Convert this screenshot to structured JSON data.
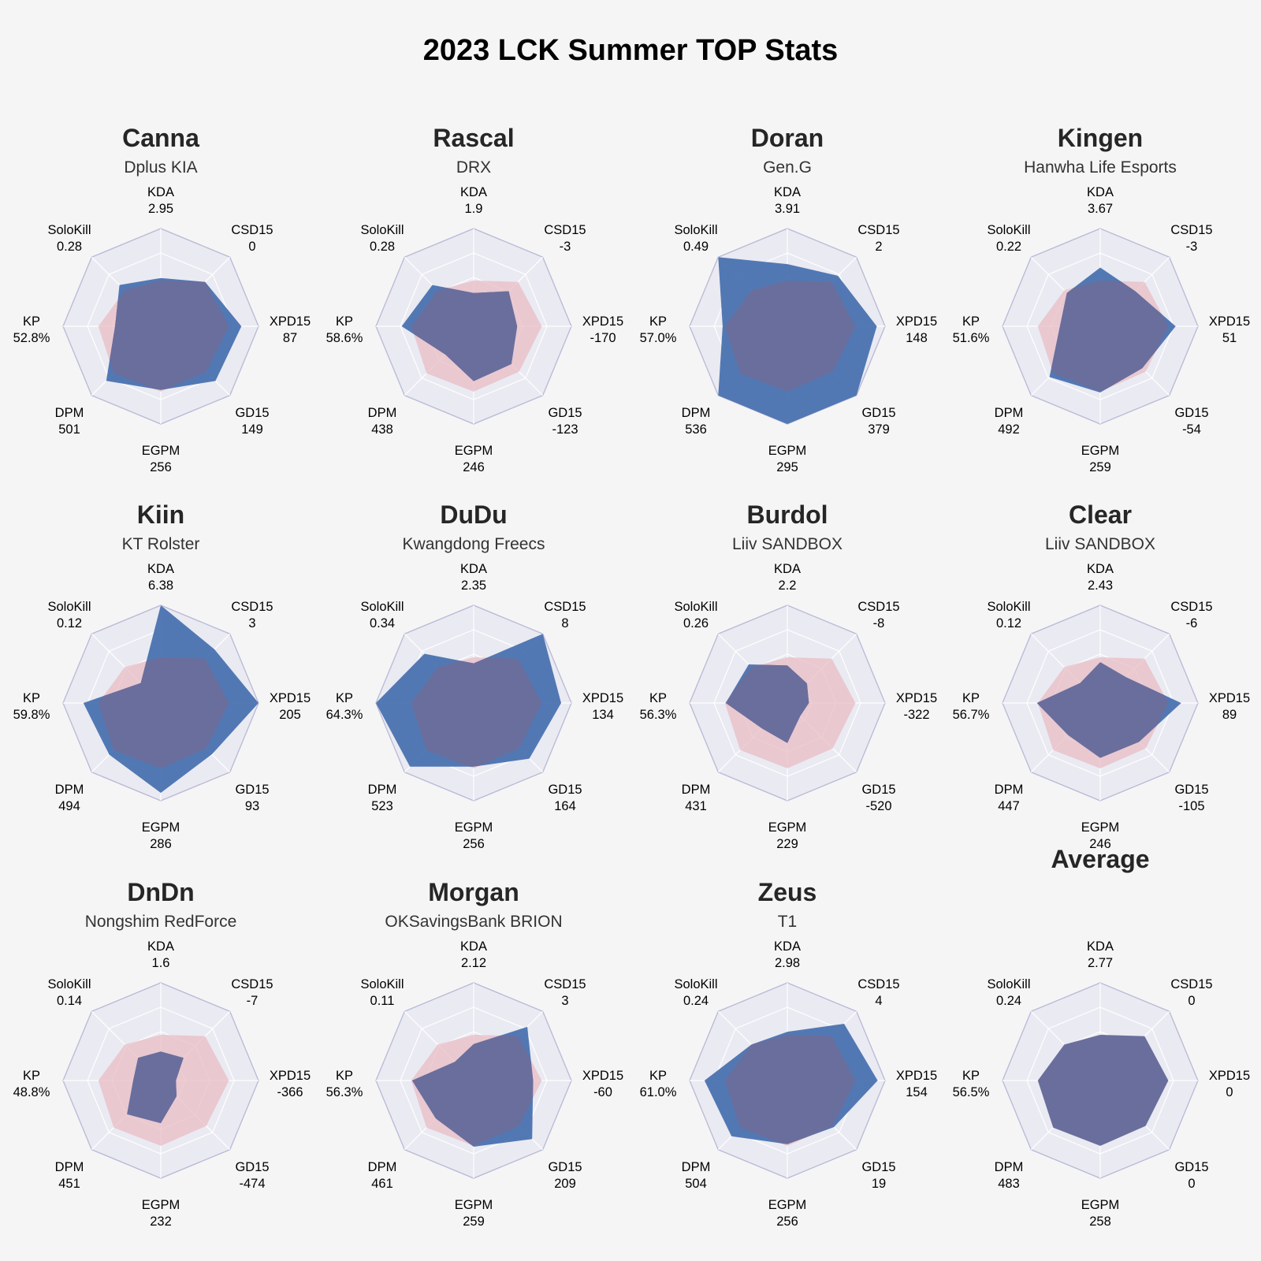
{
  "title": "2023 LCK Summer TOP Stats",
  "colors": {
    "background": "#f5f5f5",
    "panel": "#eaeaf2",
    "outline": "#b8b8d8",
    "spoke": "#ffffff",
    "player_fill": "#4a72b0",
    "average_fill": "#e8bcc4",
    "overlap_fill": "#6a6e9c"
  },
  "chart_data": {
    "type": "radar",
    "axes": [
      "KDA",
      "CSD15",
      "XPD15",
      "GD15",
      "EGPM",
      "DPM",
      "KP",
      "SoloKill"
    ],
    "axis_ranges": {
      "KDA": [
        0,
        6.38
      ],
      "CSD15": [
        -13,
        8
      ],
      "XPD15": [
        -430,
        205
      ],
      "GD15": [
        -660,
        379
      ],
      "EGPM": [
        190,
        295
      ],
      "DPM": [
        380,
        536
      ],
      "KP": [
        44,
        64.3
      ],
      "SoloKill": [
        0,
        0.49
      ]
    },
    "average": {
      "name": "Average",
      "values": {
        "KDA": 2.77,
        "CSD15": 0,
        "XPD15": 0,
        "GD15": 0,
        "EGPM": 258,
        "DPM": 483,
        "KP": 56.5,
        "SoloKill": 0.24
      },
      "labels": {
        "KDA": "2.77",
        "CSD15": "0",
        "XPD15": "0",
        "GD15": "0",
        "EGPM": "258",
        "DPM": "483",
        "KP": "56.5%",
        "SoloKill": "0.24"
      }
    },
    "players": [
      {
        "name": "Canna",
        "team": "Dplus KIA",
        "values": {
          "KDA": 2.95,
          "CSD15": 0,
          "XPD15": 87,
          "GD15": 149,
          "EGPM": 256,
          "DPM": 501,
          "KP": 52.8,
          "SoloKill": 0.28
        },
        "labels": {
          "KDA": "2.95",
          "CSD15": "0",
          "XPD15": "87",
          "GD15": "149",
          "EGPM": "256",
          "DPM": "501",
          "KP": "52.8%",
          "SoloKill": "0.28"
        }
      },
      {
        "name": "Rascal",
        "team": "DRX",
        "values": {
          "KDA": 1.9,
          "CSD15": -3,
          "XPD15": -170,
          "GD15": -123,
          "EGPM": 246,
          "DPM": 438,
          "KP": 58.6,
          "SoloKill": 0.28
        },
        "labels": {
          "KDA": "1.9",
          "CSD15": "-3",
          "XPD15": "-170",
          "GD15": "-123",
          "EGPM": "246",
          "DPM": "438",
          "KP": "58.6%",
          "SoloKill": "0.28"
        }
      },
      {
        "name": "Doran",
        "team": "Gen.G",
        "values": {
          "KDA": 3.91,
          "CSD15": 2,
          "XPD15": 148,
          "GD15": 379,
          "EGPM": 295,
          "DPM": 536,
          "KP": 57.0,
          "SoloKill": 0.49
        },
        "labels": {
          "KDA": "3.91",
          "CSD15": "2",
          "XPD15": "148",
          "GD15": "379",
          "EGPM": "295",
          "DPM": "536",
          "KP": "57.0%",
          "SoloKill": "0.49"
        }
      },
      {
        "name": "Kingen",
        "team": "Hanwha Life Esports",
        "values": {
          "KDA": 3.67,
          "CSD15": -3,
          "XPD15": 51,
          "GD15": -54,
          "EGPM": 259,
          "DPM": 492,
          "KP": 51.6,
          "SoloKill": 0.22
        },
        "labels": {
          "KDA": "3.67",
          "CSD15": "-3",
          "XPD15": "51",
          "GD15": "-54",
          "EGPM": "259",
          "DPM": "492",
          "KP": "51.6%",
          "SoloKill": "0.22"
        }
      },
      {
        "name": "Kiin",
        "team": "KT Rolster",
        "values": {
          "KDA": 6.38,
          "CSD15": 3,
          "XPD15": 205,
          "GD15": 93,
          "EGPM": 286,
          "DPM": 494,
          "KP": 59.8,
          "SoloKill": 0.12
        },
        "labels": {
          "KDA": "6.38",
          "CSD15": "3",
          "XPD15": "205",
          "GD15": "93",
          "EGPM": "286",
          "DPM": "494",
          "KP": "59.8%",
          "SoloKill": "0.12"
        }
      },
      {
        "name": "DuDu",
        "team": "Kwangdong Freecs",
        "values": {
          "KDA": 2.35,
          "CSD15": 8,
          "XPD15": 134,
          "GD15": 164,
          "EGPM": 256,
          "DPM": 523,
          "KP": 64.3,
          "SoloKill": 0.34
        },
        "labels": {
          "KDA": "2.35",
          "CSD15": "8",
          "XPD15": "134",
          "GD15": "164",
          "EGPM": "256",
          "DPM": "523",
          "KP": "64.3%",
          "SoloKill": "0.34"
        }
      },
      {
        "name": "Burdol",
        "team": "Liiv SANDBOX",
        "values": {
          "KDA": 2.2,
          "CSD15": -8,
          "XPD15": -322,
          "GD15": -520,
          "EGPM": 229,
          "DPM": 431,
          "KP": 56.3,
          "SoloKill": 0.26
        },
        "labels": {
          "KDA": "2.2",
          "CSD15": "-8",
          "XPD15": "-322",
          "GD15": "-520",
          "EGPM": "229",
          "DPM": "431",
          "KP": "56.3%",
          "SoloKill": "0.26"
        }
      },
      {
        "name": "Clear",
        "team": "Liiv SANDBOX",
        "values": {
          "KDA": 2.43,
          "CSD15": -6,
          "XPD15": 89,
          "GD15": -105,
          "EGPM": 246,
          "DPM": 447,
          "KP": 56.7,
          "SoloKill": 0.12
        },
        "labels": {
          "KDA": "2.43",
          "CSD15": "-6",
          "XPD15": "89",
          "GD15": "-105",
          "EGPM": "246",
          "DPM": "447",
          "KP": "56.7%",
          "SoloKill": "0.12"
        }
      },
      {
        "name": "DnDn",
        "team": "Nongshim RedForce",
        "values": {
          "KDA": 1.6,
          "CSD15": -7,
          "XPD15": -366,
          "GD15": -474,
          "EGPM": 232,
          "DPM": 451,
          "KP": 48.8,
          "SoloKill": 0.14
        },
        "labels": {
          "KDA": "1.6",
          "CSD15": "-7",
          "XPD15": "-366",
          "GD15": "-474",
          "EGPM": "232",
          "DPM": "451",
          "KP": "48.8%",
          "SoloKill": "0.14"
        }
      },
      {
        "name": "Morgan",
        "team": "OKSavingsBank BRION",
        "values": {
          "KDA": 2.12,
          "CSD15": 3,
          "XPD15": -60,
          "GD15": 209,
          "EGPM": 259,
          "DPM": 461,
          "KP": 56.3,
          "SoloKill": 0.11
        },
        "labels": {
          "KDA": "2.12",
          "CSD15": "3",
          "XPD15": "-60",
          "GD15": "209",
          "EGPM": "259",
          "DPM": "461",
          "KP": "56.3%",
          "SoloKill": "0.11"
        }
      },
      {
        "name": "Zeus",
        "team": "T1",
        "values": {
          "KDA": 2.98,
          "CSD15": 4,
          "XPD15": 154,
          "GD15": 19,
          "EGPM": 256,
          "DPM": 504,
          "KP": 61.0,
          "SoloKill": 0.24
        },
        "labels": {
          "KDA": "2.98",
          "CSD15": "4",
          "XPD15": "154",
          "GD15": "19",
          "EGPM": "256",
          "DPM": "504",
          "KP": "61.0%",
          "SoloKill": "0.24"
        }
      }
    ]
  }
}
